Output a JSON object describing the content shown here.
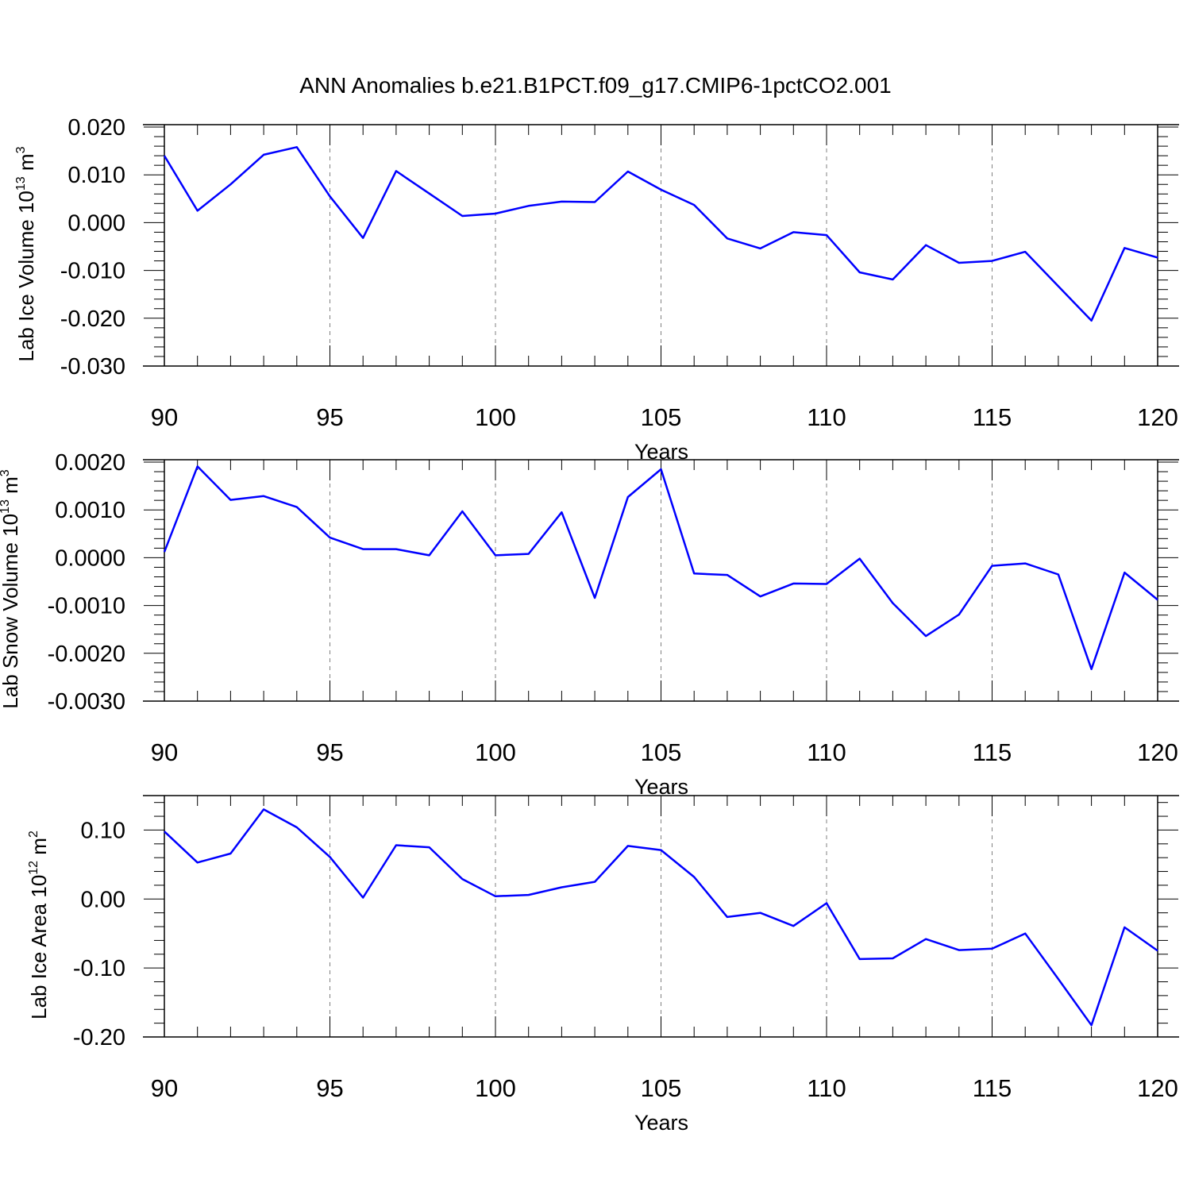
{
  "figure": {
    "title": "ANN Anomalies b.e21.B1PCT.f09_g17.CMIP6-1pctCO2.001",
    "line_color": "#0000ff",
    "grid_color": "#808080"
  },
  "chart_data": [
    {
      "type": "line",
      "title": "",
      "xlabel": "Years",
      "ylabel": "Lab Ice Volume 10",
      "ylabel_exp": "13",
      "ylabel_unit": " m",
      "ylabel_unit_exp": "3",
      "xlim": [
        90,
        120
      ],
      "ylim": [
        -0.03,
        0.0205
      ],
      "xticks": [
        90,
        95,
        100,
        105,
        110,
        115,
        120
      ],
      "xtick_labels": [
        "90",
        "95",
        "100",
        "105",
        "110",
        "115",
        "120"
      ],
      "yticks": [
        0.02,
        0.01,
        0.0,
        -0.01,
        -0.02,
        -0.03
      ],
      "ytick_labels": [
        "0.020",
        "0.010",
        "0.000",
        "-0.010",
        "-0.020",
        "-0.030"
      ],
      "grid": "x dashed",
      "x": [
        90,
        91,
        92,
        93,
        94,
        95,
        96,
        97,
        98,
        99,
        100,
        101,
        102,
        103,
        104,
        105,
        106,
        107,
        108,
        109,
        110,
        111,
        112,
        113,
        114,
        115,
        116,
        117,
        118,
        119,
        120
      ],
      "series": [
        {
          "values": [
            0.014,
            0.0025,
            0.008,
            0.0142,
            0.0158,
            0.0055,
            -0.0032,
            0.0108,
            0.0061,
            0.0014,
            0.0019,
            0.0035,
            0.0044,
            0.0043,
            0.0107,
            0.0069,
            0.0037,
            -0.0033,
            -0.0054,
            -0.002,
            -0.0026,
            -0.0104,
            -0.0119,
            -0.0047,
            -0.0084,
            -0.008,
            -0.0061,
            -0.0133,
            -0.0205,
            -0.0053,
            -0.0073
          ]
        }
      ]
    },
    {
      "type": "line",
      "title": "",
      "xlabel": "Years",
      "ylabel": "Lab Snow Volume 10",
      "ylabel_exp": "13",
      "ylabel_unit": " m",
      "ylabel_unit_exp": "3",
      "xlim": [
        90,
        120
      ],
      "ylim": [
        -0.003,
        0.00205
      ],
      "xticks": [
        90,
        95,
        100,
        105,
        110,
        115,
        120
      ],
      "xtick_labels": [
        "90",
        "95",
        "100",
        "105",
        "110",
        "115",
        "120"
      ],
      "yticks": [
        0.002,
        0.001,
        0.0,
        -0.001,
        -0.002,
        -0.003
      ],
      "ytick_labels": [
        "0.0020",
        "0.0010",
        "0.0000",
        "-0.0010",
        "-0.0020",
        "-0.0030"
      ],
      "grid": "x dashed",
      "x": [
        90,
        91,
        92,
        93,
        94,
        95,
        96,
        97,
        98,
        99,
        100,
        101,
        102,
        103,
        104,
        105,
        106,
        107,
        108,
        109,
        110,
        111,
        112,
        113,
        114,
        115,
        116,
        117,
        118,
        119,
        120
      ],
      "series": [
        {
          "values": [
            0.00012,
            0.00191,
            0.00121,
            0.00129,
            0.00106,
            0.00042,
            0.00018,
            0.00018,
            5e-05,
            0.00097,
            5e-05,
            8e-05,
            0.00095,
            -0.00084,
            0.00127,
            0.00185,
            -0.00033,
            -0.00036,
            -0.00081,
            -0.00054,
            -0.00055,
            -2e-05,
            -0.00095,
            -0.00164,
            -0.00119,
            -0.00017,
            -0.00012,
            -0.00035,
            -0.00233,
            -0.00031,
            -0.00088
          ]
        }
      ]
    },
    {
      "type": "line",
      "title": "",
      "xlabel": "Years",
      "ylabel": "Lab Ice Area 10",
      "ylabel_exp": "12",
      "ylabel_unit": " m",
      "ylabel_unit_exp": "2",
      "xlim": [
        90,
        120
      ],
      "ylim": [
        -0.2,
        0.15
      ],
      "xticks": [
        90,
        95,
        100,
        105,
        110,
        115,
        120
      ],
      "xtick_labels": [
        "90",
        "95",
        "100",
        "105",
        "110",
        "115",
        "120"
      ],
      "yticks": [
        0.1,
        0.0,
        -0.1,
        -0.2
      ],
      "ytick_labels": [
        "0.10",
        "0.00",
        "-0.10",
        "-0.20"
      ],
      "grid": "x dashed",
      "x": [
        90,
        91,
        92,
        93,
        94,
        95,
        96,
        97,
        98,
        99,
        100,
        101,
        102,
        103,
        104,
        105,
        106,
        107,
        108,
        109,
        110,
        111,
        112,
        113,
        114,
        115,
        116,
        117,
        118,
        119,
        120
      ],
      "series": [
        {
          "values": [
            0.098,
            0.053,
            0.066,
            0.13,
            0.104,
            0.061,
            0.002,
            0.078,
            0.075,
            0.029,
            0.004,
            0.006,
            0.017,
            0.025,
            0.077,
            0.071,
            0.032,
            -0.026,
            -0.02,
            -0.039,
            -0.006,
            -0.087,
            -0.086,
            -0.058,
            -0.074,
            -0.072,
            -0.05,
            -0.116,
            -0.183,
            -0.041,
            -0.075
          ]
        }
      ]
    }
  ]
}
